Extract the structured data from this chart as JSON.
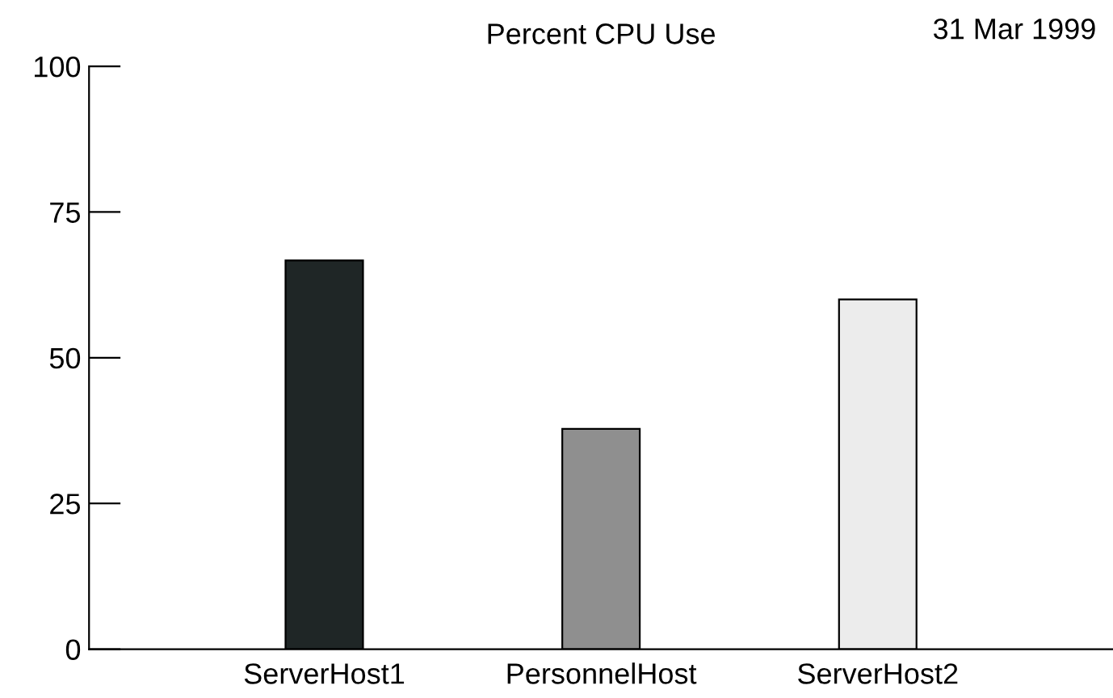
{
  "chart_data": {
    "type": "bar",
    "title": "Percent CPU Use",
    "annotations": [
      "31 Mar 1999"
    ],
    "categories": [
      "ServerHost1",
      "PersonnelHost",
      "ServerHost2"
    ],
    "values": [
      66.7,
      37.8,
      60
    ],
    "colors": [
      "#1f2626",
      "#8f8f8f",
      "#ececec"
    ],
    "ylim": [
      0,
      100
    ],
    "yticks": [
      0,
      25,
      50,
      75,
      100
    ],
    "grid": false,
    "legend": false
  }
}
